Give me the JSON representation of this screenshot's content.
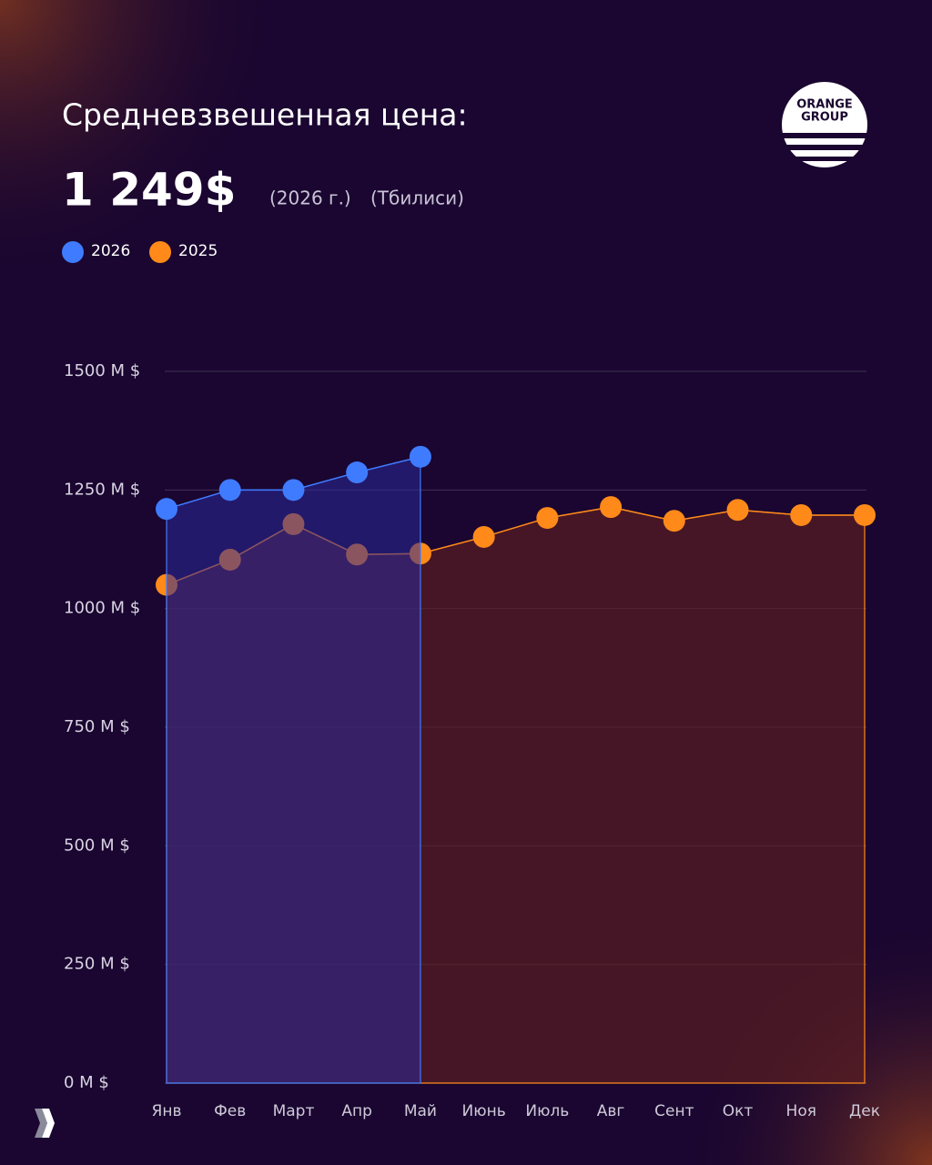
{
  "chart_data": {
    "type": "area",
    "title": "Средневзвешенная цена:",
    "annotations": [
      "1 249$",
      "(2026 г.)",
      "(Тбилиси)"
    ],
    "logo": [
      "ORANGE",
      "GROUP"
    ],
    "categories": [
      "Янв",
      "Фев",
      "Март",
      "Апр",
      "Май",
      "Июнь",
      "Июль",
      "Авг",
      "Сент",
      "Окт",
      "Ноя",
      "Дек"
    ],
    "series": [
      {
        "name": "2026",
        "color": "#3f7bff",
        "values": [
          1210,
          1250,
          1250,
          1287,
          1320,
          null,
          null,
          null,
          null,
          null,
          null,
          null
        ]
      },
      {
        "name": "2025",
        "color": "#ff8a1a",
        "values": [
          1050,
          1103,
          1178,
          1114,
          1116,
          1151,
          1191,
          1214,
          1185,
          1208,
          1197,
          1197
        ]
      }
    ],
    "ylim": [
      0,
      1500
    ],
    "yticks": [
      {
        "value": 0,
        "label": "0 M $"
      },
      {
        "value": 250,
        "label": "250 M $"
      },
      {
        "value": 500,
        "label": "500 M $"
      },
      {
        "value": 750,
        "label": "750 M $"
      },
      {
        "value": 1000,
        "label": "1000 M $"
      },
      {
        "value": 1250,
        "label": "1250 M $"
      },
      {
        "value": 1500,
        "label": "1500 M $"
      }
    ],
    "grid": true
  }
}
